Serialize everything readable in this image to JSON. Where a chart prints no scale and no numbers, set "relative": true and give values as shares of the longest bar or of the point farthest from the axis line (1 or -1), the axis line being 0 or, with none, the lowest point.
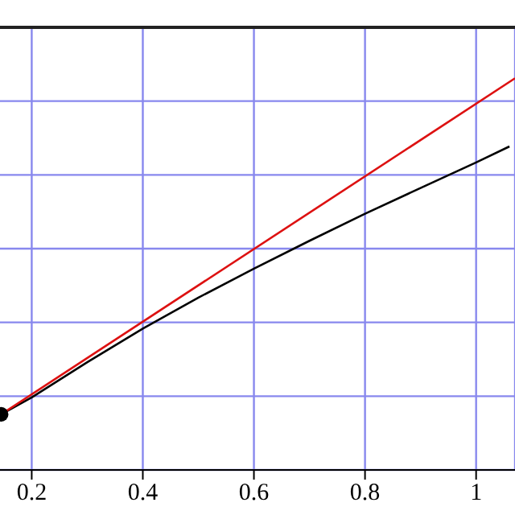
{
  "chart_data": {
    "type": "line",
    "relative": true,
    "xlim": [
      0.14,
      1.07
    ],
    "xticks": [
      0.2,
      0.4,
      0.6,
      0.8,
      1
    ],
    "grid": true,
    "tick_labels": "x",
    "line_style": "solid",
    "series": [
      {
        "color": "#000000",
        "x": [
          0.145,
          0.2,
          0.3,
          0.4,
          0.5,
          0.6,
          0.7,
          0.8,
          0.9,
          1.0,
          1.06
        ],
        "values": [
          0.142,
          0.185,
          0.275,
          0.361,
          0.44,
          0.514,
          0.585,
          0.654,
          0.72,
          0.785,
          0.826
        ]
      },
      {
        "color": "#dd1111",
        "x": [
          0.145,
          1.07
        ],
        "values": [
          0.142,
          1
        ]
      },
      {
        "type": "scatter",
        "color": "#000000",
        "marker": "circle",
        "x": [
          0.145
        ],
        "values": [
          0.142
        ]
      }
    ]
  }
}
